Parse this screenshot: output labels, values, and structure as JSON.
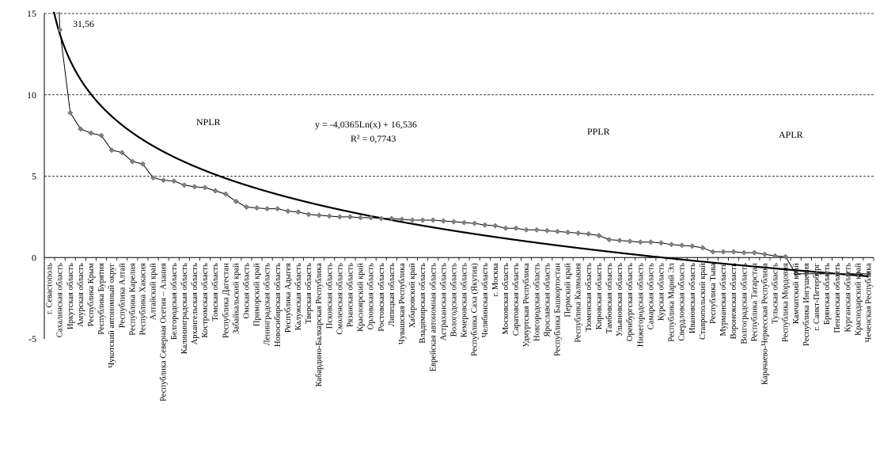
{
  "chart_data": {
    "type": "line",
    "title": "",
    "xlabel": "",
    "ylabel": "",
    "ylim": [
      -5,
      15
    ],
    "y_ticks": [
      "-5",
      "0",
      "5",
      "10",
      "15"
    ],
    "grid": "horizontal dashed at 5, 10, 15",
    "categories": [
      "г. Севастополь",
      "Сахалинская область",
      "Иркутская область",
      "Амурская область",
      "Республика Крым",
      "Республика Бурятия",
      "Чукотский автономный округ",
      "Республика Алтай",
      "Республика Карелия",
      "Республика Хакасия",
      "Алтайский край",
      "Республика Северная Осетия – Алания",
      "Белгородская область",
      "Калининградская область",
      "Архангельская область",
      "Костромская область",
      "Томская область",
      "Республика Дагестан",
      "Забайкальский край",
      "Омская область",
      "Приморский край",
      "Ленинградская область",
      "Новосибирская область",
      "Республика Адыгея",
      "Калужская область",
      "Тверская область",
      "Кабардино-Балкарская Республика",
      "Псковская область",
      "Смоленская область",
      "Рязанская область",
      "Красноярский край",
      "Орловская область",
      "Ростовская область",
      "Липецкая область",
      "Чувашская Республика",
      "Хабаровский край",
      "Владимирская область",
      "Еврейская автономная область",
      "Астраханская область",
      "Вологодская область",
      "Кемеровская область",
      "Республика Саха (Якутия)",
      "Челябинская область",
      "г. Москва",
      "Московская область",
      "Саратовская область",
      "Удмуртская Республика",
      "Новгородская область",
      "Ярославская область",
      "Республика Башкортостан",
      "Пермский край",
      "Республика Калмыкия",
      "Тюменская область",
      "Кировская область",
      "Тамбовская область",
      "Ульяновская область",
      "Оренбургская область",
      "Нижегородская область",
      "Самарская область",
      "Курская область",
      "Республика Марий Эл",
      "Свердловская область",
      "Ивановская область",
      "Ставропольский край",
      "Республика Тыва",
      "Мурманская область",
      "Воронежская область",
      "Волгоградская область",
      "Республика Татарстан",
      "Карачаево-Черкесская Республика",
      "Тульская область",
      "Республика Мордовия",
      "Камчатский край",
      "Республика Ингушетия",
      "г. Санкт-Петербург",
      "Брянская область",
      "Пензенская область",
      "Курганская область",
      "Краснодарский край",
      "Чеченская Республика"
    ],
    "series": [
      {
        "type": "line-markers",
        "color": "#808080",
        "values": [
          31.56,
          14.0,
          8.9,
          7.9,
          7.65,
          7.5,
          6.6,
          6.45,
          5.9,
          5.75,
          4.9,
          4.75,
          4.7,
          4.45,
          4.35,
          4.3,
          4.1,
          3.9,
          3.45,
          3.1,
          3.05,
          3.0,
          3.0,
          2.85,
          2.8,
          2.65,
          2.6,
          2.55,
          2.5,
          2.5,
          2.45,
          2.45,
          2.4,
          2.4,
          2.35,
          2.3,
          2.3,
          2.3,
          2.25,
          2.2,
          2.15,
          2.1,
          2.0,
          1.95,
          1.8,
          1.8,
          1.7,
          1.7,
          1.65,
          1.6,
          1.55,
          1.5,
          1.45,
          1.35,
          1.1,
          1.05,
          1.0,
          0.95,
          0.95,
          0.9,
          0.8,
          0.75,
          0.7,
          0.6,
          0.35,
          0.35,
          0.35,
          0.3,
          0.3,
          0.2,
          0.1,
          0.05,
          -1.0,
          -1.0,
          -1.0,
          -1.0,
          -1.0,
          -1.0,
          -1.0,
          -1.0
        ]
      },
      {
        "type": "trendline",
        "equation": "y = -4,0365Ln(x) + 16,536",
        "r2": "R² = 0,7743",
        "a": -4.0365,
        "b": 16.536
      }
    ],
    "annotations": {
      "peak_label": "31,56",
      "zones": [
        "NPLR",
        "PPLR",
        "APLR"
      ]
    }
  }
}
